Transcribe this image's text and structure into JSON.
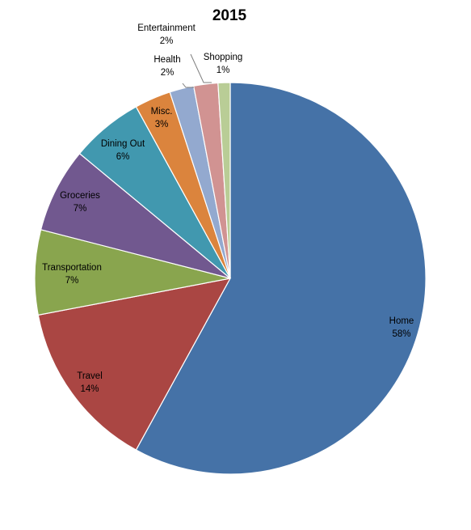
{
  "chart_data": {
    "type": "pie",
    "title": "2015",
    "categories": [
      "Home",
      "Travel",
      "Transportation",
      "Groceries",
      "Dining Out",
      "Misc.",
      "Health",
      "Entertainment",
      "Shopping"
    ],
    "values": [
      58,
      14,
      7,
      7,
      6,
      3,
      2,
      2,
      1
    ],
    "value_labels": [
      "58%",
      "14%",
      "7%",
      "7%",
      "6%",
      "3%",
      "2%",
      "2%",
      "1%"
    ],
    "colors": [
      "#4572A7",
      "#AA4643",
      "#89A54E",
      "#71588F",
      "#4198AF",
      "#DB843D",
      "#93A9CF",
      "#D19392",
      "#B9CD96"
    ],
    "legend": "none",
    "data_labels": "category and percent"
  }
}
